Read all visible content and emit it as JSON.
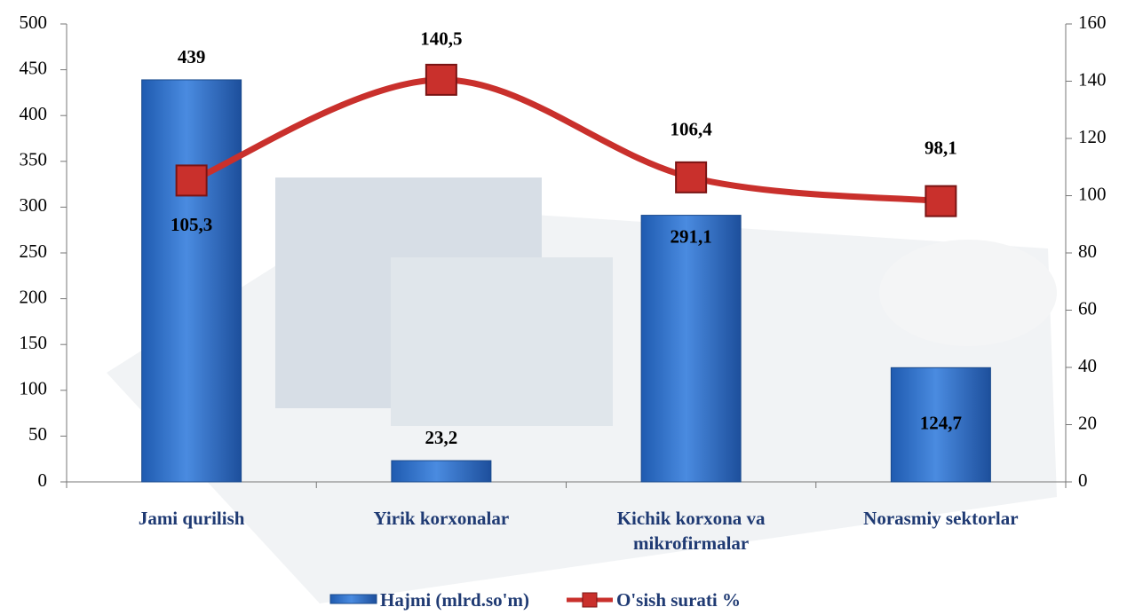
{
  "chart_data": {
    "type": "bar",
    "categories": [
      "Jami qurilish",
      "Yirik korxonalar",
      "Kichik korxona va mikrofirmalar",
      "Norasmiy sektorlar"
    ],
    "series": [
      {
        "name": "Hajmi (mlrd.so'm)",
        "type": "bar",
        "color": "#2f6fc4",
        "values": [
          439,
          23.2,
          291.1,
          124.7
        ],
        "value_labels": [
          "439",
          "23,2",
          "291,1",
          "124,7"
        ]
      },
      {
        "name": "O'sish surati %",
        "type": "line",
        "axis": "y2",
        "color": "#c9302c",
        "values": [
          105.3,
          140.5,
          106.4,
          98.1
        ],
        "value_labels": [
          "105,3",
          "140,5",
          "106,4",
          "98,1"
        ]
      }
    ],
    "ylim": [
      0,
      500
    ],
    "yticks": [
      0,
      50,
      100,
      150,
      200,
      250,
      300,
      350,
      400,
      450,
      500
    ],
    "y2lim": [
      0,
      160
    ],
    "y2ticks": [
      0,
      20,
      40,
      60,
      80,
      100,
      120,
      140,
      160
    ],
    "legend": "bottom"
  }
}
